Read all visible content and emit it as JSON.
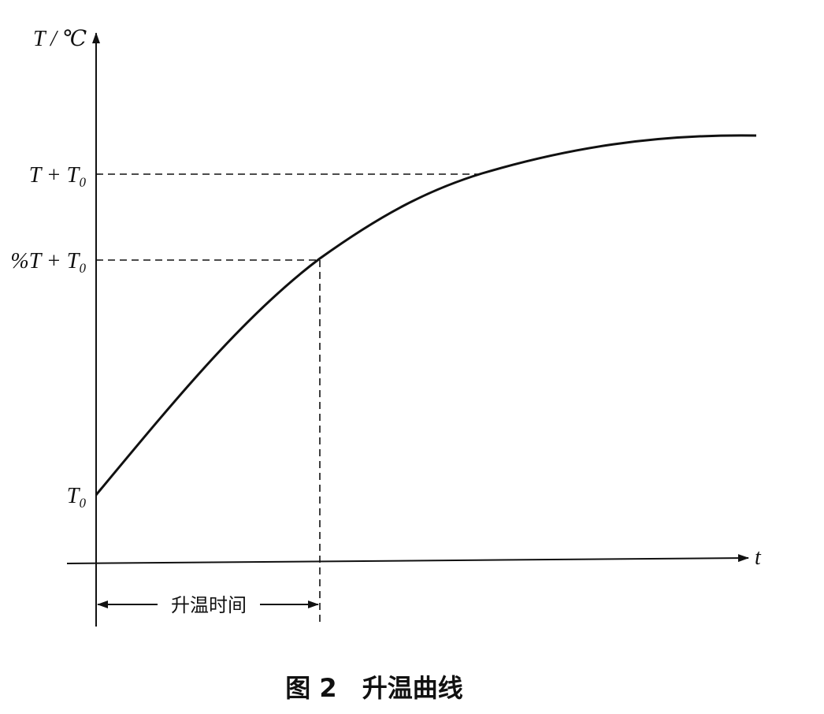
{
  "y_axis_label": "T / ℃",
  "x_axis_label": "t",
  "levels": [
    "T + T₀",
    "%T + T₀",
    "T₀"
  ],
  "interval_label": "升温时间",
  "caption": "图 2　升温曲线"
}
